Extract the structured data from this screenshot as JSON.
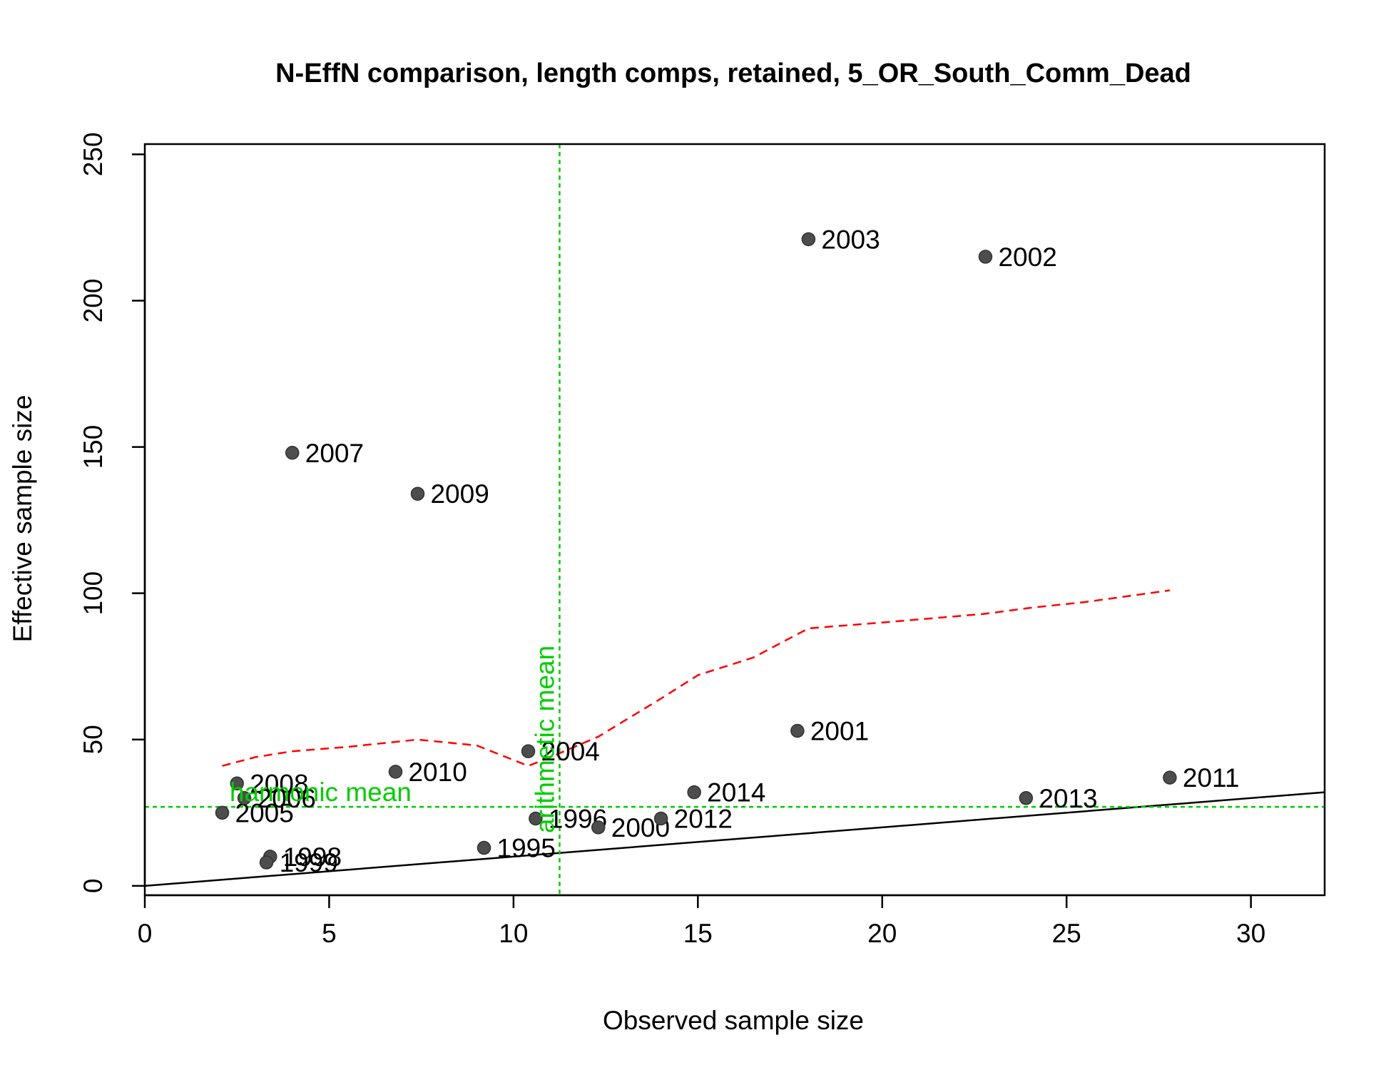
{
  "chart_data": {
    "type": "scatter",
    "title": "N-EffN comparison, length comps, retained, 5_OR_South_Comm_Dead",
    "xlabel": "Observed sample size",
    "ylabel": "Effective sample size",
    "xlim": [
      0,
      32
    ],
    "ylim": [
      0,
      250
    ],
    "x_ticks": [
      0,
      5,
      10,
      15,
      20,
      25,
      30
    ],
    "y_ticks": [
      0,
      50,
      100,
      150,
      200,
      250
    ],
    "grid": false,
    "legend": "none",
    "points": [
      {
        "label": "1995",
        "x": 9.2,
        "y": 13
      },
      {
        "label": "1996",
        "x": 10.6,
        "y": 23
      },
      {
        "label": "1998",
        "x": 3.4,
        "y": 10
      },
      {
        "label": "1999",
        "x": 3.3,
        "y": 8
      },
      {
        "label": "2000",
        "x": 12.3,
        "y": 20
      },
      {
        "label": "2001",
        "x": 17.7,
        "y": 53
      },
      {
        "label": "2002",
        "x": 22.8,
        "y": 215
      },
      {
        "label": "2003",
        "x": 18.0,
        "y": 221
      },
      {
        "label": "2004",
        "x": 10.4,
        "y": 46
      },
      {
        "label": "2005",
        "x": 2.1,
        "y": 25
      },
      {
        "label": "2006",
        "x": 2.7,
        "y": 30
      },
      {
        "label": "2007",
        "x": 4.0,
        "y": 148
      },
      {
        "label": "2008",
        "x": 2.5,
        "y": 35
      },
      {
        "label": "2009",
        "x": 7.4,
        "y": 134
      },
      {
        "label": "2010",
        "x": 6.8,
        "y": 39
      },
      {
        "label": "2011",
        "x": 27.8,
        "y": 37
      },
      {
        "label": "2012",
        "x": 14.0,
        "y": 23
      },
      {
        "label": "2013",
        "x": 23.9,
        "y": 30
      },
      {
        "label": "2014",
        "x": 14.9,
        "y": 32
      }
    ],
    "one_to_one_line": {
      "x": [
        0,
        32
      ],
      "y": [
        0,
        32
      ],
      "color": "#000000"
    },
    "smoother": {
      "color": "#ff0000",
      "x": [
        2.1,
        3.0,
        4.0,
        5.5,
        7.4,
        9.0,
        10.4,
        11.0,
        12.3,
        14.0,
        15.0,
        16.5,
        18.0,
        20.0,
        22.8,
        24.0,
        25.5,
        27.8
      ],
      "y": [
        41,
        44,
        46,
        47.5,
        50,
        48,
        41,
        44,
        51,
        64,
        72,
        78,
        88,
        90,
        93,
        95,
        97,
        101
      ]
    },
    "reference_lines": {
      "color": "#00cd00",
      "harmonic_mean": {
        "label": "harmonic mean",
        "y": 27
      },
      "arithmetic_mean": {
        "label": "arithmetic mean",
        "x": 11.25
      }
    },
    "point_color": "#4d4d4d"
  }
}
